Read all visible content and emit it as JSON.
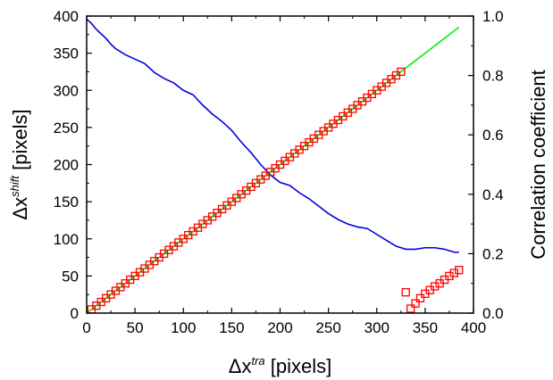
{
  "chart_data": {
    "type": "scatter",
    "xlabel": {
      "prefix": "Δx",
      "sup": "tra",
      "suffix": " [pixels]"
    },
    "ylabel_left": {
      "prefix": "Δx",
      "sup": "shift",
      "suffix": " [pixels]"
    },
    "ylabel_right": "Correlation coefficient",
    "xlim": [
      0,
      400
    ],
    "ylim_left": [
      0,
      400
    ],
    "ylim_right": [
      0,
      1.0
    ],
    "x_ticks": [
      "0",
      "50",
      "100",
      "150",
      "200",
      "250",
      "300",
      "350",
      "400"
    ],
    "y_left_ticks": [
      "0",
      "50",
      "100",
      "150",
      "200",
      "250",
      "300",
      "350",
      "400"
    ],
    "y_right_ticks": [
      "0.0",
      "0.2",
      "0.4",
      "0.6",
      "0.8",
      "1.0"
    ],
    "grid": false,
    "colors": {
      "squares": "#ff0000",
      "fit_line": "#00ee00",
      "correlation": "#0000dd"
    },
    "series": [
      {
        "kind": "scatter-squares",
        "axis": "left",
        "x": [
          5,
          10,
          15,
          20,
          25,
          30,
          35,
          40,
          45,
          50,
          55,
          60,
          65,
          70,
          75,
          80,
          85,
          90,
          95,
          100,
          105,
          110,
          115,
          120,
          125,
          130,
          135,
          140,
          145,
          150,
          155,
          160,
          165,
          170,
          175,
          180,
          185,
          190,
          195,
          200,
          205,
          210,
          215,
          220,
          225,
          230,
          235,
          240,
          245,
          250,
          255,
          260,
          265,
          270,
          275,
          280,
          285,
          290,
          295,
          300,
          305,
          310,
          315,
          320,
          325,
          330,
          335,
          340,
          345,
          350,
          355,
          360,
          365,
          370,
          375,
          380,
          385
        ],
        "y": [
          5,
          10,
          15,
          20,
          25,
          30,
          35,
          40,
          45,
          50,
          55,
          60,
          65,
          70,
          75,
          80,
          85,
          90,
          95,
          100,
          105,
          110,
          115,
          120,
          125,
          130,
          135,
          140,
          145,
          150,
          155,
          160,
          165,
          170,
          175,
          180,
          185,
          190,
          195,
          200,
          205,
          210,
          215,
          220,
          225,
          230,
          235,
          240,
          245,
          250,
          255,
          260,
          265,
          270,
          275,
          280,
          285,
          290,
          295,
          300,
          305,
          310,
          315,
          320,
          325,
          28,
          6,
          13,
          20,
          26,
          31,
          36,
          40,
          45,
          50,
          54,
          58
        ]
      },
      {
        "kind": "line",
        "axis": "left",
        "x": [
          0,
          385
        ],
        "y": [
          0,
          385
        ]
      },
      {
        "kind": "line",
        "axis": "right",
        "x": [
          0,
          5,
          10,
          15,
          20,
          25,
          30,
          40,
          50,
          60,
          70,
          80,
          90,
          100,
          110,
          120,
          130,
          140,
          150,
          160,
          170,
          180,
          190,
          200,
          210,
          220,
          230,
          240,
          250,
          260,
          270,
          280,
          290,
          300,
          310,
          320,
          330,
          340,
          350,
          360,
          370,
          380,
          385
        ],
        "y": [
          0.99,
          0.975,
          0.955,
          0.94,
          0.925,
          0.905,
          0.89,
          0.87,
          0.855,
          0.84,
          0.81,
          0.79,
          0.775,
          0.75,
          0.735,
          0.7,
          0.67,
          0.645,
          0.615,
          0.575,
          0.54,
          0.5,
          0.465,
          0.44,
          0.43,
          0.405,
          0.385,
          0.36,
          0.335,
          0.315,
          0.3,
          0.29,
          0.285,
          0.265,
          0.245,
          0.225,
          0.215,
          0.215,
          0.22,
          0.22,
          0.215,
          0.205,
          0.205
        ]
      }
    ]
  }
}
